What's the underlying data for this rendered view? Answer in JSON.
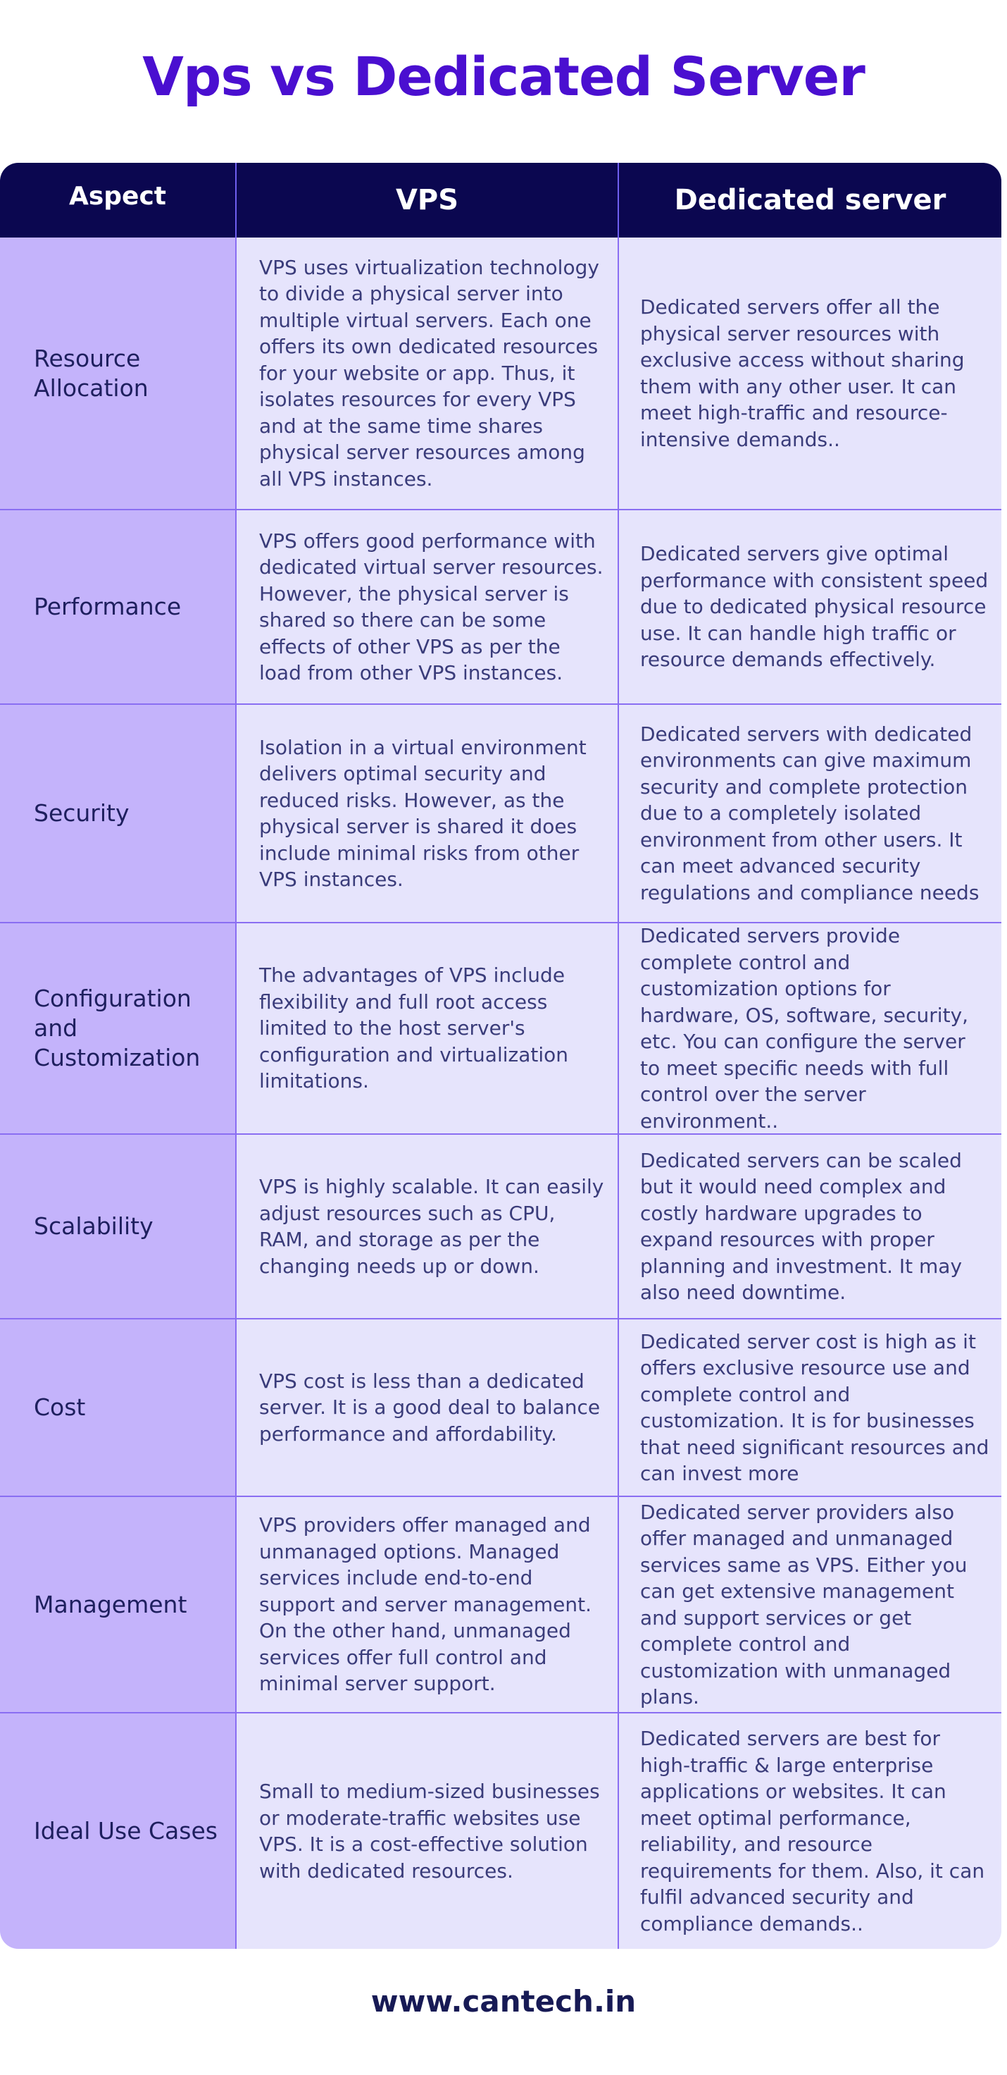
{
  "title": "Vps vs Dedicated Server",
  "table": {
    "headers": [
      "Aspect",
      "VPS",
      "Dedicated server"
    ],
    "rows": [
      {
        "aspect": "Resource Allocation",
        "vps": "VPS uses virtualization technology to divide a physical server into multiple virtual servers. Each one offers its own dedicated resources for your website or app. Thus, it isolates resources for every VPS and at the same time shares physical server resources among all VPS instances.",
        "dedicated": "Dedicated servers offer all the physical server resources with exclusive access without sharing them with any other user. It can meet high-traffic and resource-intensive demands.."
      },
      {
        "aspect": "Performance",
        "vps": "VPS offers good performance with dedicated virtual server resources. However, the physical server is shared so there can be some effects of other VPS as per the load from other VPS instances.",
        "dedicated": "Dedicated servers give optimal performance with consistent speed due to dedicated physical resource use. It can handle high traffic or resource demands effectively."
      },
      {
        "aspect": "Security",
        "vps": "Isolation in a virtual environment delivers optimal security and reduced risks. However, as the physical server is shared it does include minimal risks from other VPS instances.",
        "dedicated": "Dedicated servers with dedicated environments can give maximum security and complete protection due to a completely isolated environment from other users. It can meet advanced security regulations and compliance needs"
      },
      {
        "aspect": "Configuration and Customization",
        "vps": "The advantages of VPS include flexibility and full root access limited to the host server's configuration and virtualization limitations.",
        "dedicated": "Dedicated servers provide complete control and customization options for hardware, OS, software, security, etc. You can configure the server to meet specific needs with full control over the server environment.."
      },
      {
        "aspect": "Scalability",
        "vps": "VPS is highly scalable. It can easily adjust resources such as CPU, RAM, and storage as per the changing needs up or down.",
        "dedicated": "Dedicated servers can be scaled but it would need complex and costly hardware upgrades to expand resources with proper planning and investment. It may also need downtime."
      },
      {
        "aspect": "Cost",
        "vps": "VPS cost is less than a dedicated server. It is a good deal to balance performance and affordability.",
        "dedicated": "Dedicated server cost is high as it offers exclusive resource use and complete control and customization. It is for businesses that need significant resources and can invest more"
      },
      {
        "aspect": "Management",
        "vps": "VPS providers offer managed and unmanaged options. Managed services include end-to-end support and server management. On the other hand, unmanaged services offer full control and minimal server support.",
        "dedicated": "Dedicated server providers also offer managed and unmanaged services same as VPS. Either you can get extensive management and support services or get complete control and customization with unmanaged plans."
      },
      {
        "aspect": "Ideal Use Cases",
        "vps": "Small to medium-sized businesses or moderate-traffic websites use VPS. It is a cost-effective solution with dedicated resources.",
        "dedicated": "Dedicated servers are best for high-traffic & large enterprise applications or websites. It can meet optimal performance, reliability, and resource requirements for them. Also, it can fulfil advanced security and compliance demands.."
      }
    ]
  },
  "footer": "www.cantech.in",
  "colors": {
    "title": "#4a0fd0",
    "header_bg": "#0b0750",
    "aspect_bg": "#c4b3fb",
    "body_bg": "#e6e4fc",
    "border": "#8a6ef2"
  }
}
